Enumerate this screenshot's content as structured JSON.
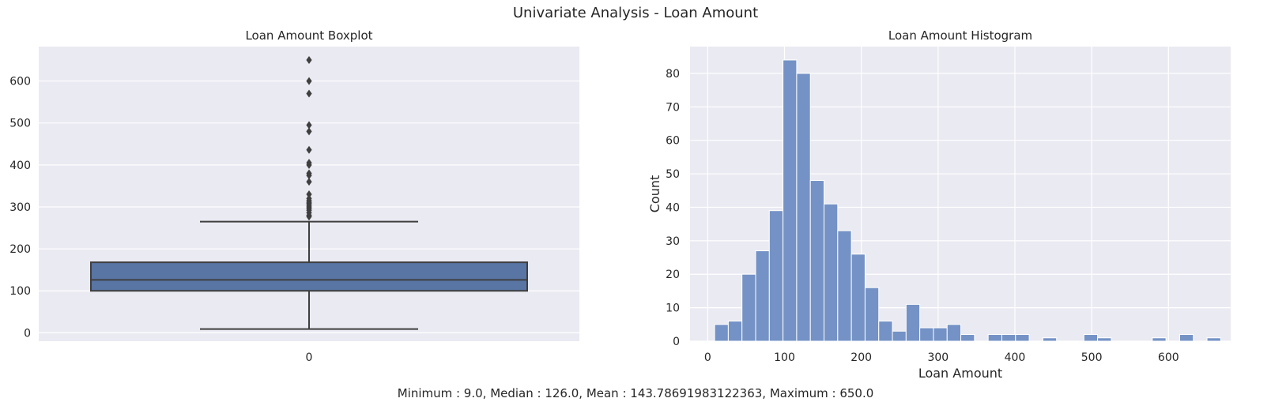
{
  "suptitle": "Univariate Analysis - Loan Amount",
  "caption": "Minimum : 9.0, Median : 126.0, Mean : 143.78691983122363, Maximum : 650.0",
  "colors": {
    "axes_bg": "#eaeaf2",
    "grid": "#ffffff",
    "box_fill": "#5875a4",
    "box_line": "#3f3f3f",
    "hist_fill": "#7492c5",
    "hist_edge": "#ffffff"
  },
  "chart_data": [
    {
      "type": "boxplot",
      "title": "Loan Amount Boxplot",
      "xlabel": "",
      "ylabel": "",
      "categories": [
        "0"
      ],
      "yticks": [
        0,
        100,
        200,
        300,
        400,
        500,
        600
      ],
      "ylim": [
        -20,
        682
      ],
      "grid": true,
      "stats": {
        "whisker_low": 9,
        "q1": 100,
        "median": 126,
        "q3": 168,
        "whisker_high": 265
      },
      "outliers": [
        650,
        600,
        570,
        495,
        480,
        436,
        405,
        400,
        380,
        375,
        360,
        330,
        320,
        315,
        311,
        308,
        304,
        300,
        296,
        292,
        286,
        280,
        277
      ]
    },
    {
      "type": "bar",
      "title": "Loan Amount Histogram",
      "xlabel": "Loan Amount",
      "ylabel": "Count",
      "xticks": [
        0,
        100,
        200,
        300,
        400,
        500,
        600
      ],
      "yticks": [
        0,
        10,
        20,
        30,
        40,
        50,
        60,
        70,
        80
      ],
      "xlim": [
        -23,
        681
      ],
      "ylim": [
        0,
        88
      ],
      "grid": true,
      "bin_start": 9,
      "bin_width": 17.81,
      "counts": [
        5,
        6,
        20,
        27,
        39,
        84,
        80,
        48,
        41,
        33,
        26,
        16,
        6,
        3,
        11,
        4,
        4,
        5,
        2,
        0,
        2,
        2,
        2,
        0,
        1,
        0,
        0,
        2,
        1,
        0,
        0,
        0,
        1,
        0,
        2,
        0,
        1
      ]
    }
  ]
}
